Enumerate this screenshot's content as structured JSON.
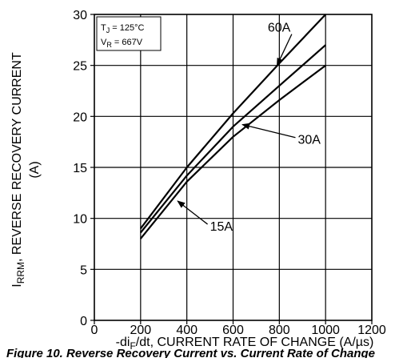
{
  "chart_data": {
    "type": "line",
    "title": "",
    "xlabel": "-di_F/dt, CURRENT RATE OF CHANGE (A/µs)",
    "xlabel_parts": {
      "prefix": "-di",
      "sub": "F",
      "suffix": "/dt, CURRENT RATE OF CHANGE (A/µs)"
    },
    "ylabel": "I_RRM, REVERSE RECOVERY CURRENT (A)",
    "ylabel_parts": {
      "prefix": "I",
      "sub": "RRM",
      "suffix": ", REVERSE RECOVERY CURRENT",
      "line2": "(A)"
    },
    "xlim": [
      0,
      1200
    ],
    "ylim": [
      0,
      30
    ],
    "x_ticks": [
      0,
      200,
      400,
      600,
      800,
      1000,
      1200
    ],
    "y_ticks": [
      0,
      5,
      10,
      15,
      20,
      25,
      30
    ],
    "grid": true,
    "conditions": {
      "tj": {
        "prefix": "T",
        "sub": "J",
        "suffix": " = 125°C"
      },
      "vr": {
        "prefix": "V",
        "sub": "R",
        "suffix": " = 667V"
      }
    },
    "series": [
      {
        "name": "60A",
        "x": [
          200,
          400,
          600,
          800,
          1000
        ],
        "y": [
          9.0,
          15.0,
          20.3,
          25.2,
          30.0
        ]
      },
      {
        "name": "30A",
        "x": [
          200,
          400,
          600,
          800,
          1000
        ],
        "y": [
          8.6,
          14.2,
          19.0,
          23.0,
          27.0
        ]
      },
      {
        "name": "15A",
        "x": [
          200,
          400,
          600,
          800,
          1000
        ],
        "y": [
          8.0,
          13.6,
          18.0,
          21.6,
          25.0
        ]
      }
    ],
    "annotations": [
      {
        "label": "60A",
        "text_x": 750,
        "text_y": 28.3,
        "point_x": 790,
        "point_y": 25.0
      },
      {
        "label": "30A",
        "text_x": 880,
        "text_y": 17.3,
        "point_x": 640,
        "point_y": 19.2
      },
      {
        "label": "15A",
        "text_x": 500,
        "text_y": 8.8,
        "point_x": 360,
        "point_y": 11.7
      }
    ],
    "caption": "Figure 10. Reverse Recovery Current vs. Current Rate of Change"
  }
}
